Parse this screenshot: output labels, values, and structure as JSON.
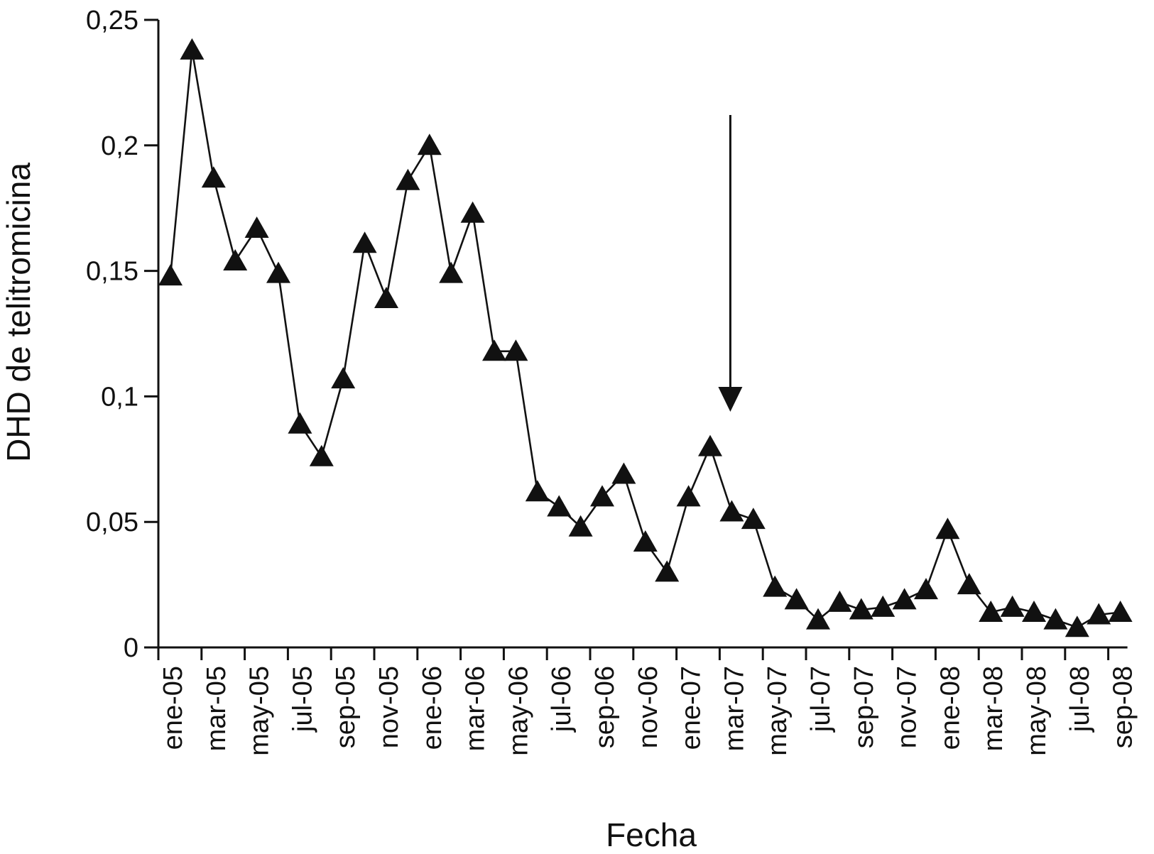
{
  "chart_data": {
    "type": "line",
    "title": "",
    "xlabel": "Fecha",
    "ylabel": "DHD de telitromicina",
    "ylim": [
      0,
      0.25
    ],
    "y_ticks": [
      "0",
      "0,05",
      "0,1",
      "0,15",
      "0,2",
      "0,25"
    ],
    "y_tick_values": [
      0,
      0.05,
      0.1,
      0.15,
      0.2,
      0.25
    ],
    "x_tick_labels": [
      "ene-05",
      "mar-05",
      "may-05",
      "jul-05",
      "sep-05",
      "nov-05",
      "ene-06",
      "mar-06",
      "may-06",
      "jul-06",
      "sep-06",
      "nov-06",
      "ene-07",
      "mar-07",
      "may-07",
      "jul-07",
      "sep-07",
      "nov-07",
      "ene-08",
      "mar-08",
      "may-08",
      "jul-08",
      "sep-08"
    ],
    "x": [
      "ene-05",
      "feb-05",
      "mar-05",
      "abr-05",
      "may-05",
      "jun-05",
      "jul-05",
      "ago-05",
      "sep-05",
      "oct-05",
      "nov-05",
      "dic-05",
      "ene-06",
      "feb-06",
      "mar-06",
      "abr-06",
      "may-06",
      "jun-06",
      "jul-06",
      "ago-06",
      "sep-06",
      "oct-06",
      "nov-06",
      "dic-06",
      "ene-07",
      "feb-07",
      "mar-07",
      "abr-07",
      "may-07",
      "jun-07",
      "jul-07",
      "ago-07",
      "sep-07",
      "oct-07",
      "nov-07",
      "dic-07",
      "ene-08",
      "feb-08",
      "mar-08",
      "abr-08",
      "may-08",
      "jun-08",
      "jul-08",
      "ago-08",
      "sep-08"
    ],
    "series": [
      {
        "name": "",
        "marker": "triangle",
        "color": "#111111",
        "values": [
          0.148,
          0.238,
          0.187,
          0.154,
          0.167,
          0.149,
          0.089,
          0.076,
          0.107,
          0.161,
          0.139,
          0.186,
          0.2,
          0.149,
          0.173,
          0.118,
          0.118,
          0.062,
          0.056,
          0.048,
          0.06,
          0.069,
          0.042,
          0.03,
          0.06,
          0.08,
          0.054,
          0.051,
          0.024,
          0.019,
          0.011,
          0.018,
          0.015,
          0.016,
          0.019,
          0.023,
          0.047,
          0.025,
          0.014,
          0.016,
          0.014,
          0.011,
          0.008,
          0.013,
          0.014
        ]
      }
    ],
    "annotations": [
      {
        "type": "arrow",
        "direction": "down",
        "x": "mar-07"
      }
    ],
    "grid": false,
    "legend": "none"
  }
}
